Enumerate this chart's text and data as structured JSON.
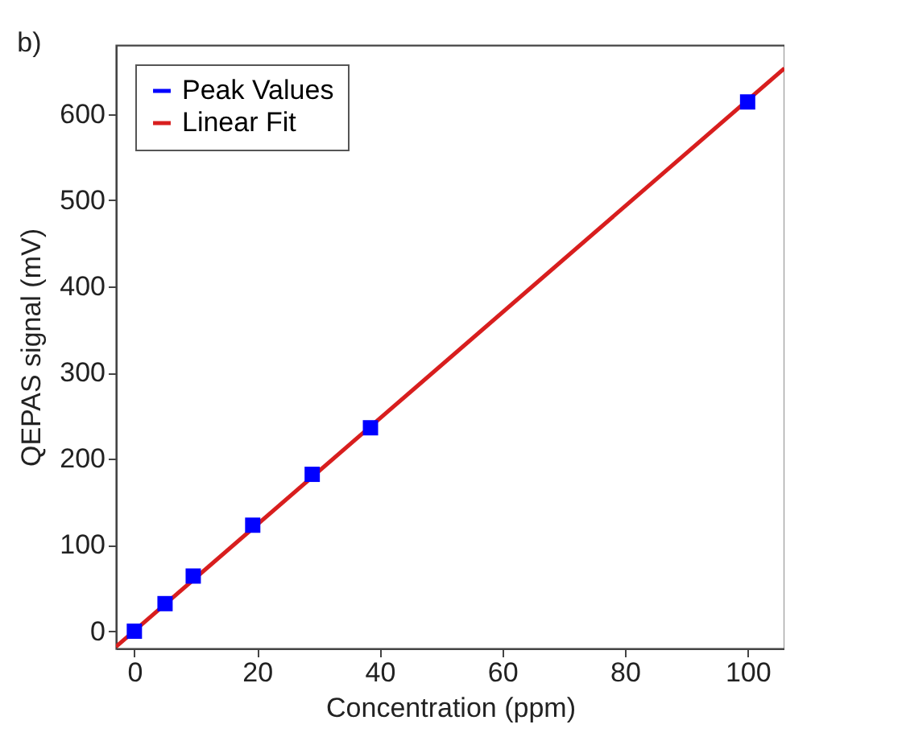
{
  "chart_data": {
    "type": "scatter",
    "xlabel": "Concentration (ppm)",
    "ylabel": "QEPAS signal (mV)",
    "annotations": [
      "b)"
    ],
    "xlim": [
      -3,
      106
    ],
    "ylim": [
      -20,
      680
    ],
    "xticks": [
      0,
      20,
      40,
      60,
      80,
      100
    ],
    "yticks": [
      0,
      100,
      200,
      300,
      400,
      500,
      600
    ],
    "grid": false,
    "legend": "top left",
    "series": [
      {
        "name": "Peak Values",
        "marker": "square",
        "color": "#0000ff",
        "x": [
          0,
          5,
          9.6,
          19.3,
          29,
          38.5,
          100
        ],
        "values": [
          0,
          32,
          64,
          123,
          182,
          236,
          614
        ]
      },
      {
        "name": "Linear Fit",
        "type": "line",
        "color": "#d81e1e",
        "x": [
          -3,
          106
        ],
        "values": [
          -18,
          653
        ]
      }
    ]
  }
}
